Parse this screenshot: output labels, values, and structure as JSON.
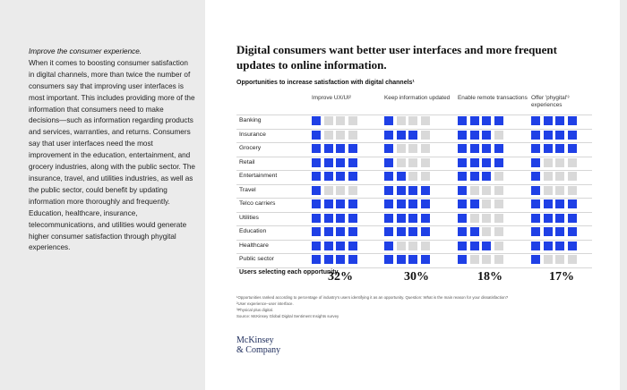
{
  "sidebar": {
    "lead": "Improve the consumer experience.",
    "body": "When it comes to boosting consumer satisfaction in digital channels, more than twice the number of consumers say that improving user interfaces is most important. This includes providing more of the information that consumers need to make decisions—such as information regarding products and services, warranties, and returns. Consumers say that user interfaces need the most improvement in the education, entertainment, and grocery industries, along with the public sector. The insurance, travel, and utilities industries, as well as the public sector, could benefit by updating information more thoroughly and frequently. Education, healthcare, insurance, telecommunications, and utilities would generate higher consumer satisfaction through phygital experiences."
  },
  "exhibit": {
    "title": "Digital consumers want better user interfaces and more frequent updates to online information.",
    "subtitle": "Opportunities to increase satisfaction with digital channels¹",
    "users_label": "Users selecting each opportunity",
    "footnotes": [
      "¹Opportunities ranked according to percentage of industry's users identifying it as an opportunity. Question: What is the main reason for your dissatisfaction?",
      "²User experience–user interface.",
      "³Physical plus digital.",
      "Source: McKinsey Global Digital Sentiment Insights survey"
    ],
    "logo_line1": "McKinsey",
    "logo_line2": "& Company"
  },
  "chart_data": {
    "type": "table",
    "title": "Opportunities to increase satisfaction with digital channels¹",
    "columns": [
      "Improve UX/UI²",
      "Keep information updated",
      "Enable remote transactions",
      "Offer 'phygital'³ experiences"
    ],
    "rows": [
      "Banking",
      "Insurance",
      "Grocery",
      "Retail",
      "Entertainment",
      "Travel",
      "Telco carriers",
      "Utilities",
      "Education",
      "Healthcare",
      "Public sector"
    ],
    "max_squares": 4,
    "values": [
      [
        1,
        1,
        4,
        4
      ],
      [
        1,
        3,
        3,
        4
      ],
      [
        4,
        1,
        4,
        4
      ],
      [
        4,
        1,
        4,
        1
      ],
      [
        4,
        2,
        3,
        1
      ],
      [
        1,
        4,
        1,
        1
      ],
      [
        4,
        4,
        2,
        4
      ],
      [
        4,
        4,
        1,
        4
      ],
      [
        4,
        4,
        2,
        4
      ],
      [
        4,
        1,
        3,
        4
      ],
      [
        4,
        4,
        1,
        1
      ]
    ],
    "column_percentages": [
      "32%",
      "30%",
      "18%",
      "17%"
    ],
    "colors": {
      "filled": "#1f40e6",
      "empty": "#d9d9d9"
    }
  }
}
